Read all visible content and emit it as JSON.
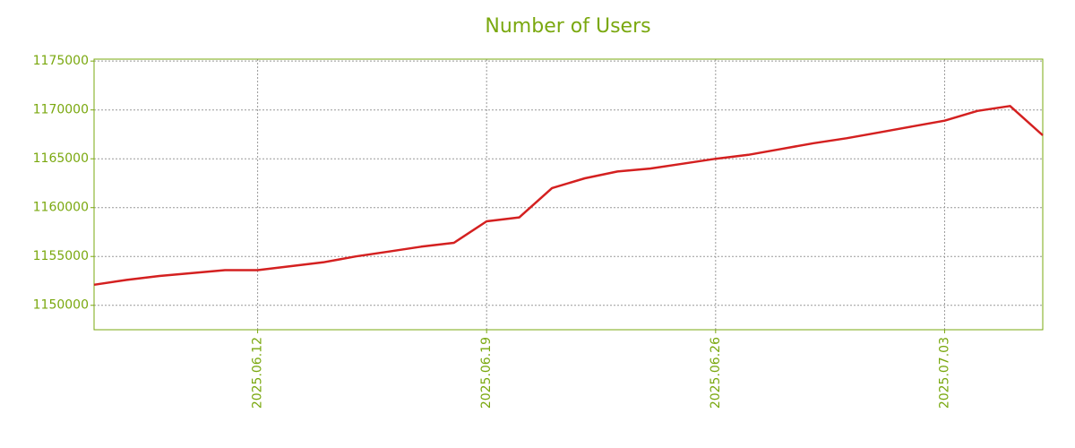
{
  "chart_data": {
    "type": "line",
    "title": "Number of Users",
    "x": [
      "2025.06.07",
      "2025.06.08",
      "2025.06.09",
      "2025.06.10",
      "2025.06.11",
      "2025.06.12",
      "2025.06.13",
      "2025.06.14",
      "2025.06.15",
      "2025.06.16",
      "2025.06.17",
      "2025.06.18",
      "2025.06.19",
      "2025.06.20",
      "2025.06.21",
      "2025.06.22",
      "2025.06.23",
      "2025.06.24",
      "2025.06.25",
      "2025.06.26",
      "2025.06.27",
      "2025.06.28",
      "2025.06.29",
      "2025.06.30",
      "2025.07.01",
      "2025.07.02",
      "2025.07.03",
      "2025.07.04",
      "2025.07.05",
      "2025.07.06"
    ],
    "series": [
      {
        "name": "Number of Users",
        "color": "#d42020",
        "values": [
          1152100,
          1152600,
          1153000,
          1153300,
          1153600,
          1153600,
          1154000,
          1154400,
          1155000,
          1155500,
          1156000,
          1156400,
          1158600,
          1159000,
          1162000,
          1163000,
          1163700,
          1164000,
          1164500,
          1165000,
          1165400,
          1166000,
          1166600,
          1167100,
          1167700,
          1168300,
          1168900,
          1169900,
          1170400,
          1167400
        ]
      }
    ],
    "xlim": [
      "2025.06.07",
      "2025.07.06"
    ],
    "xticks": [
      "2025.06.12",
      "2025.06.19",
      "2025.06.26",
      "2025.07.03"
    ],
    "ylim": [
      1147500,
      1175200
    ],
    "yticks": [
      1150000,
      1155000,
      1160000,
      1165000,
      1170000,
      1175000
    ],
    "grid": true
  }
}
